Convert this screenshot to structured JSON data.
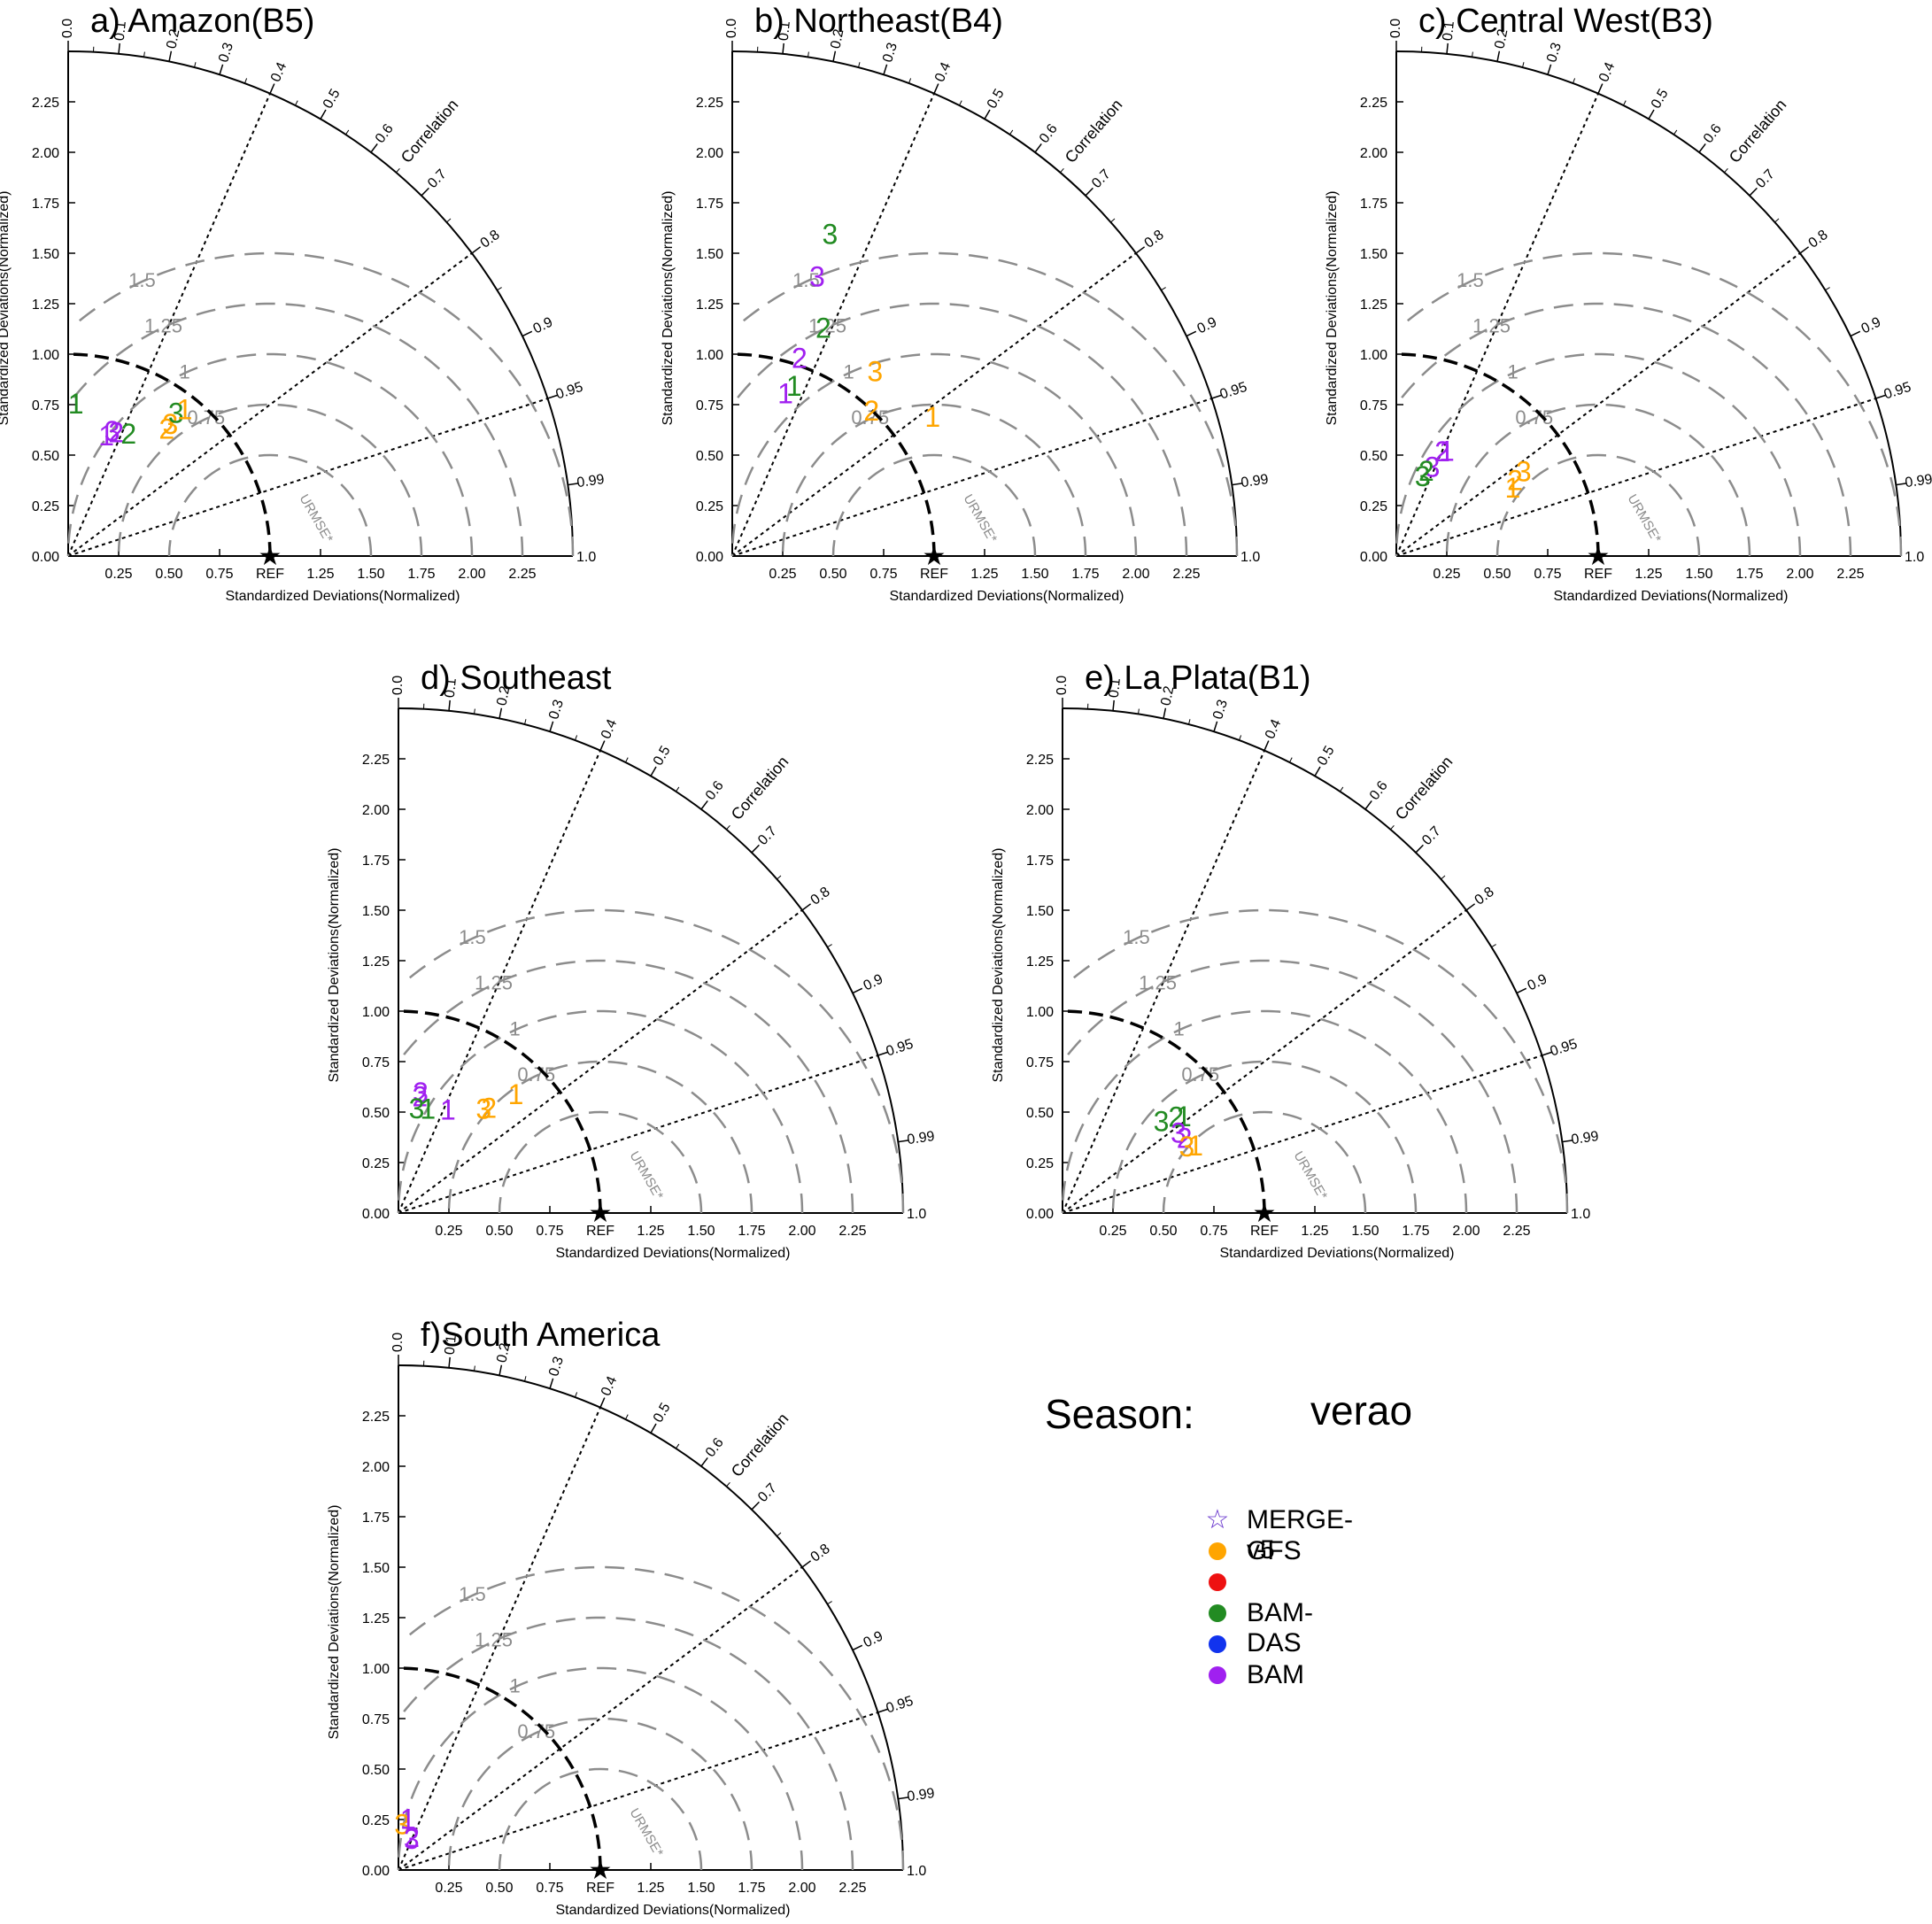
{
  "season": {
    "label": "Season:",
    "value": "verao"
  },
  "legend": [
    {
      "label": "MERGE-v5",
      "marker": "star-icon",
      "color": "#6633cc"
    },
    {
      "label": "GFS",
      "marker": "dot-icon",
      "color": "#ffa500"
    },
    {
      "label": "",
      "marker": "dot-icon",
      "color": "#ee1111"
    },
    {
      "label": "BAM-DAS",
      "marker": "dot-icon",
      "color": "#228b22"
    },
    {
      "label": "",
      "marker": "dot-icon",
      "color": "#1133ee"
    },
    {
      "label": "BAM",
      "marker": "dot-icon",
      "color": "#a020f0"
    }
  ],
  "colors": {
    "GFS": "#ffa500",
    "BAM-DAS": "#228b22",
    "BAM": "#a020f0",
    "REF": "#000000",
    "rms": "#8c8c8c"
  },
  "common": {
    "xlabel": "Standardized Deviations(Normalized)",
    "ylabel": "Standardized Deviations(Normalized)",
    "corr_title": "Correlation",
    "ref_label": "REF",
    "rms_title": "URMSE*",
    "max_std": 2.5,
    "x_ticks": [
      "0.25",
      "0.50",
      "0.75",
      "REF",
      "1.25",
      "1.50",
      "1.75",
      "2.00",
      "2.25"
    ],
    "y_ticks": [
      "0.00",
      "0.25",
      "0.50",
      "0.75",
      "1.00",
      "1.25",
      "1.50",
      "1.75",
      "2.00",
      "2.25"
    ],
    "corr_ticks": [
      "0.0",
      "0.1",
      "0.2",
      "0.3",
      "0.4",
      "0.5",
      "0.6",
      "0.7",
      "0.8",
      "0.9",
      "0.95",
      "0.99",
      "1.0"
    ],
    "corr_lines": [
      0.4,
      0.8,
      0.95
    ],
    "rms_circles": [
      "0.75",
      "1",
      "1.25",
      "1.5"
    ]
  },
  "chart_data": [
    {
      "type": "taylor",
      "title": "a) Amazon(B5)",
      "points": [
        {
          "series": "BAM-DAS",
          "label": "1",
          "std": 0.76,
          "corr": 0.05
        },
        {
          "series": "BAM",
          "label": "1",
          "std": 0.63,
          "corr": 0.3
        },
        {
          "series": "BAM",
          "label": "2",
          "std": 0.66,
          "corr": 0.36
        },
        {
          "series": "BAM",
          "label": "3",
          "std": 0.66,
          "corr": 0.33
        },
        {
          "series": "BAM-DAS",
          "label": "2",
          "std": 0.68,
          "corr": 0.44
        },
        {
          "series": "GFS",
          "label": "2",
          "std": 0.8,
          "corr": 0.61
        },
        {
          "series": "GFS",
          "label": "3",
          "std": 0.83,
          "corr": 0.61
        },
        {
          "series": "BAM-DAS",
          "label": "3",
          "std": 0.89,
          "corr": 0.6
        },
        {
          "series": "GFS",
          "label": "1",
          "std": 0.93,
          "corr": 0.62
        }
      ]
    },
    {
      "type": "taylor",
      "title": "b) Northeast(B4)",
      "points": [
        {
          "series": "BAM",
          "label": "1",
          "std": 0.85,
          "corr": 0.31
        },
        {
          "series": "BAM-DAS",
          "label": "1",
          "std": 0.9,
          "corr": 0.34
        },
        {
          "series": "BAM",
          "label": "2",
          "std": 1.04,
          "corr": 0.32
        },
        {
          "series": "BAM-DAS",
          "label": "2",
          "std": 1.22,
          "corr": 0.37
        },
        {
          "series": "BAM",
          "label": "3",
          "std": 1.45,
          "corr": 0.29
        },
        {
          "series": "BAM-DAS",
          "label": "3",
          "std": 1.67,
          "corr": 0.29
        },
        {
          "series": "GFS",
          "label": "3",
          "std": 1.16,
          "corr": 0.61
        },
        {
          "series": "GFS",
          "label": "2",
          "std": 1.0,
          "corr": 0.69
        },
        {
          "series": "GFS",
          "label": "1",
          "std": 1.21,
          "corr": 0.82
        }
      ]
    },
    {
      "type": "taylor",
      "title": "c) Central West(B3)",
      "points": [
        {
          "series": "BAM",
          "label": "1",
          "std": 0.58,
          "corr": 0.43
        },
        {
          "series": "BAM",
          "label": "2",
          "std": 0.57,
          "corr": 0.4
        },
        {
          "series": "BAM",
          "label": "3",
          "std": 0.48,
          "corr": 0.37
        },
        {
          "series": "BAM-DAS",
          "label": "3",
          "std": 0.42,
          "corr": 0.31
        },
        {
          "series": "BAM-DAS",
          "label": "2",
          "std": 0.45,
          "corr": 0.33
        },
        {
          "series": "GFS",
          "label": "2",
          "std": 0.7,
          "corr": 0.84
        },
        {
          "series": "GFS",
          "label": "3",
          "std": 0.76,
          "corr": 0.83
        },
        {
          "series": "GFS",
          "label": "1",
          "std": 0.67,
          "corr": 0.86
        }
      ]
    },
    {
      "type": "taylor",
      "title": "d) Southeast",
      "points": [
        {
          "series": "BAM",
          "label": "3",
          "std": 0.61,
          "corr": 0.18
        },
        {
          "series": "BAM",
          "label": "2",
          "std": 0.59,
          "corr": 0.18
        },
        {
          "series": "BAM-DAS",
          "label": "3",
          "std": 0.53,
          "corr": 0.17
        },
        {
          "series": "BAM-DAS",
          "label": "1",
          "std": 0.54,
          "corr": 0.27
        },
        {
          "series": "BAM",
          "label": "1",
          "std": 0.57,
          "corr": 0.43
        },
        {
          "series": "GFS",
          "label": "2",
          "std": 0.69,
          "corr": 0.65
        },
        {
          "series": "GFS",
          "label": "3",
          "std": 0.67,
          "corr": 0.63
        },
        {
          "series": "GFS",
          "label": "1",
          "std": 0.83,
          "corr": 0.7
        }
      ]
    },
    {
      "type": "taylor",
      "title": "e) La Plata(B1)",
      "points": [
        {
          "series": "BAM-DAS",
          "label": "3",
          "std": 0.67,
          "corr": 0.73
        },
        {
          "series": "BAM-DAS",
          "label": "2",
          "std": 0.74,
          "corr": 0.76
        },
        {
          "series": "BAM-DAS",
          "label": "1",
          "std": 0.77,
          "corr": 0.78
        },
        {
          "series": "BAM",
          "label": "3",
          "std": 0.7,
          "corr": 0.82
        },
        {
          "series": "BAM",
          "label": "2",
          "std": 0.71,
          "corr": 0.85
        },
        {
          "series": "GFS",
          "label": "3",
          "std": 0.7,
          "corr": 0.88
        },
        {
          "series": "GFS",
          "label": "1",
          "std": 0.74,
          "corr": 0.89
        }
      ]
    },
    {
      "type": "taylor",
      "title": "f)South America",
      "points": [
        {
          "series": "GFS",
          "label": "3",
          "std": 0.23,
          "corr": 0.08
        },
        {
          "series": "BAM",
          "label": "1",
          "std": 0.26,
          "corr": 0.18
        },
        {
          "series": "BAM",
          "label": "2",
          "std": 0.18,
          "corr": 0.37
        },
        {
          "series": "BAM",
          "label": "3",
          "std": 0.17,
          "corr": 0.38
        }
      ]
    }
  ]
}
